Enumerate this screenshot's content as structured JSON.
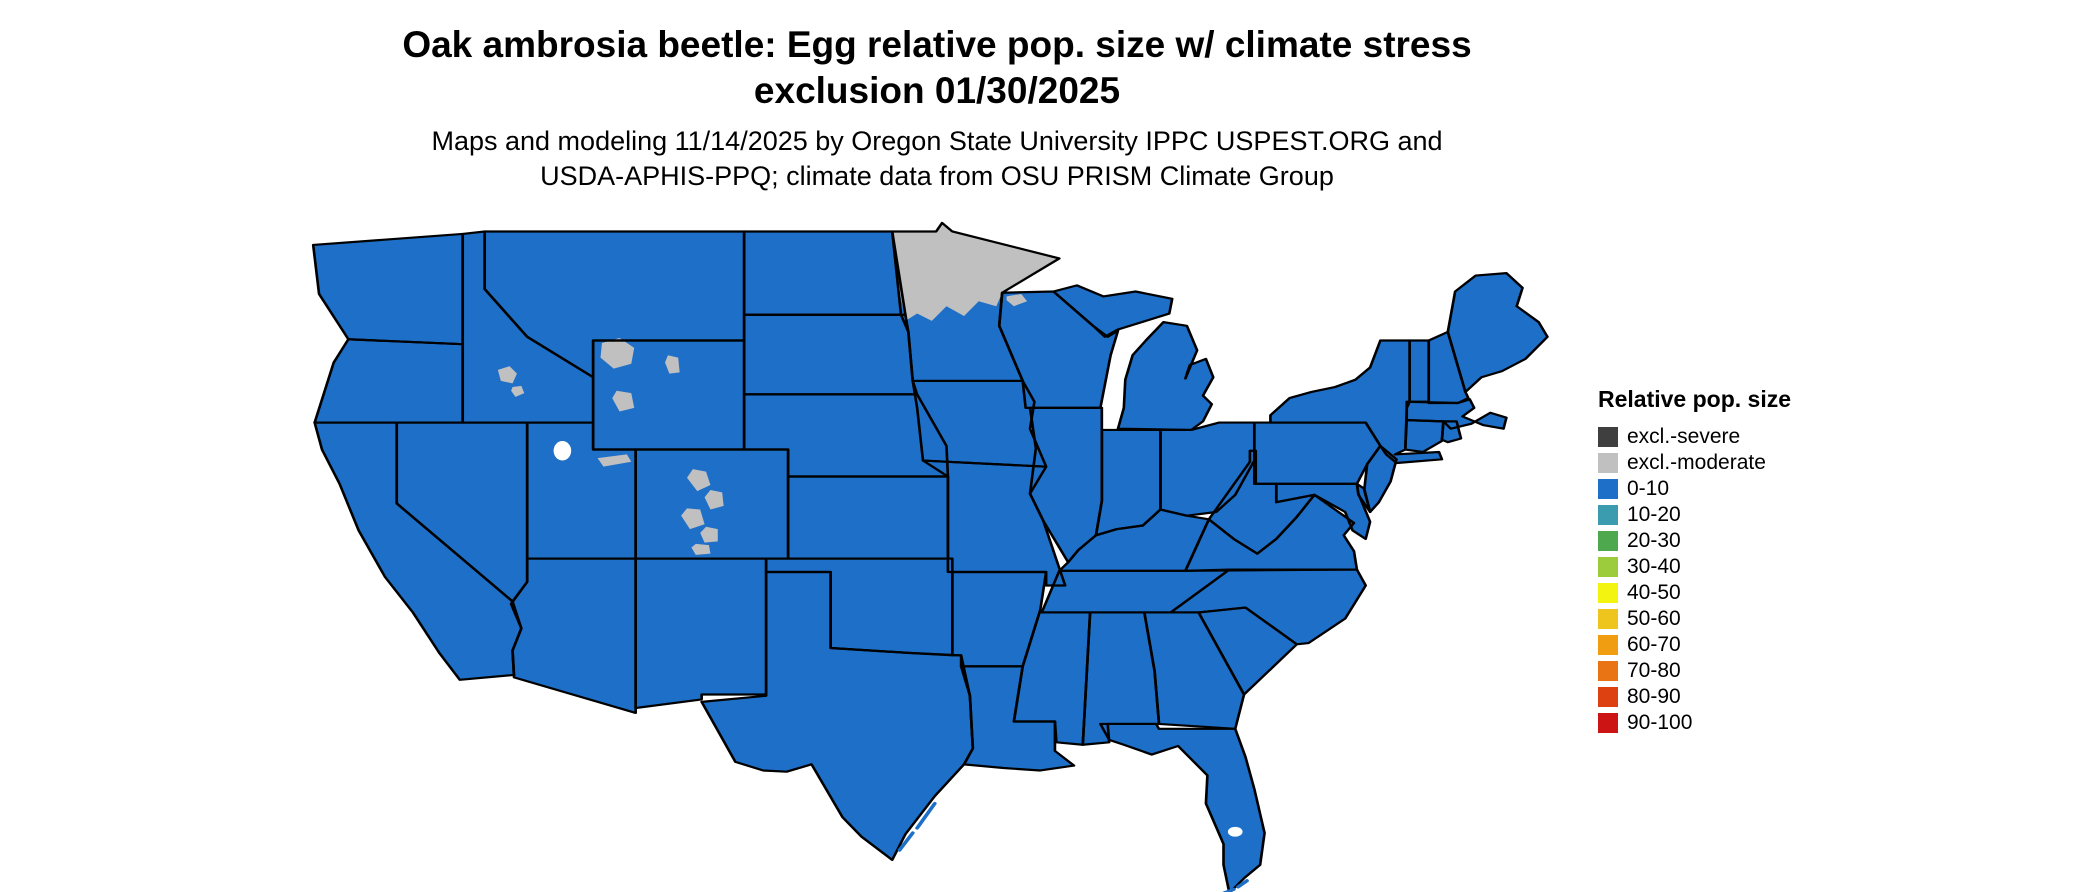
{
  "title": {
    "line1": "Oak ambrosia beetle: Egg relative pop. size w/ climate stress",
    "line2": "exclusion 01/30/2025"
  },
  "subtitle": {
    "line1": "Maps and modeling 11/14/2025 by Oregon State University IPPC USPEST.ORG and",
    "line2": "USDA-APHIS-PPQ; climate data from OSU PRISM Climate Group"
  },
  "legend": {
    "title": "Relative pop. size",
    "entries": [
      {
        "label": "excl.-severe",
        "color": "#3f3f3f"
      },
      {
        "label": "excl.-moderate",
        "color": "#c0c0c0"
      },
      {
        "label": "0-10",
        "color": "#1e6fc8"
      },
      {
        "label": "10-20",
        "color": "#3b9cb0"
      },
      {
        "label": "20-30",
        "color": "#4ea84e"
      },
      {
        "label": "30-40",
        "color": "#9ccb3c"
      },
      {
        "label": "40-50",
        "color": "#f3f410"
      },
      {
        "label": "50-60",
        "color": "#eec51c"
      },
      {
        "label": "60-70",
        "color": "#f09d12"
      },
      {
        "label": "70-80",
        "color": "#e87413"
      },
      {
        "label": "80-90",
        "color": "#de4111"
      },
      {
        "label": "90-100",
        "color": "#cd1414"
      }
    ]
  },
  "map": {
    "colors": {
      "state_fill": "#1e6fc8",
      "exclusion_moderate_fill": "#c0c0c0",
      "exclusion_severe_fill": "#3f3f3f",
      "border": "#000000",
      "background": "#ffffff"
    }
  }
}
